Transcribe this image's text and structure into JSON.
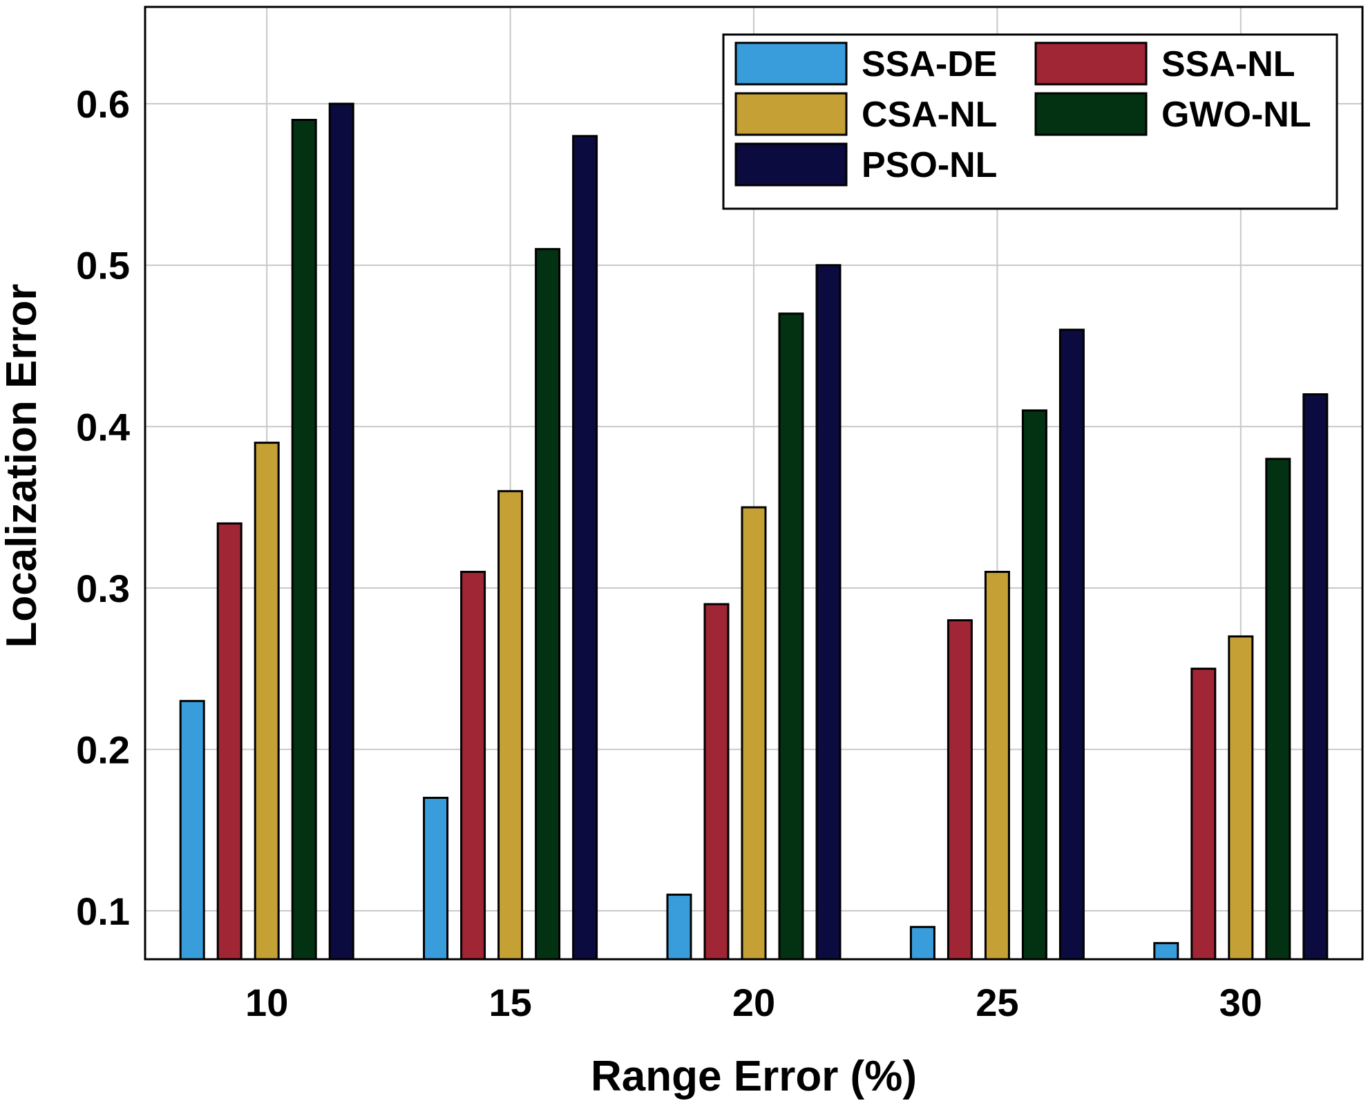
{
  "chart_data": {
    "type": "bar",
    "title": "",
    "xlabel": "Range Error (%)",
    "ylabel": "Localization Error",
    "categories": [
      "10",
      "15",
      "20",
      "25",
      "30"
    ],
    "ylim": [
      0.07,
      0.66
    ],
    "yticks": [
      0.1,
      0.2,
      0.3,
      0.4,
      0.5,
      0.6
    ],
    "ytick_labels": [
      "0.1",
      "0.2",
      "0.3",
      "0.4",
      "0.5",
      "0.6"
    ],
    "grid": true,
    "legend_position": "top-right",
    "series": [
      {
        "name": "SSA-DE",
        "color": "#3a9ddb",
        "values": [
          0.23,
          0.17,
          0.11,
          0.09,
          0.08
        ]
      },
      {
        "name": "SSA-NL",
        "color": "#a02535",
        "values": [
          0.34,
          0.31,
          0.29,
          0.28,
          0.25
        ]
      },
      {
        "name": "CSA-NL",
        "color": "#c4a035",
        "values": [
          0.39,
          0.36,
          0.35,
          0.31,
          0.27
        ]
      },
      {
        "name": "GWO-NL",
        "color": "#033212",
        "values": [
          0.59,
          0.51,
          0.47,
          0.41,
          0.38
        ]
      },
      {
        "name": "PSO-NL",
        "color": "#0b0b40",
        "values": [
          0.6,
          0.58,
          0.5,
          0.46,
          0.42
        ]
      }
    ]
  }
}
